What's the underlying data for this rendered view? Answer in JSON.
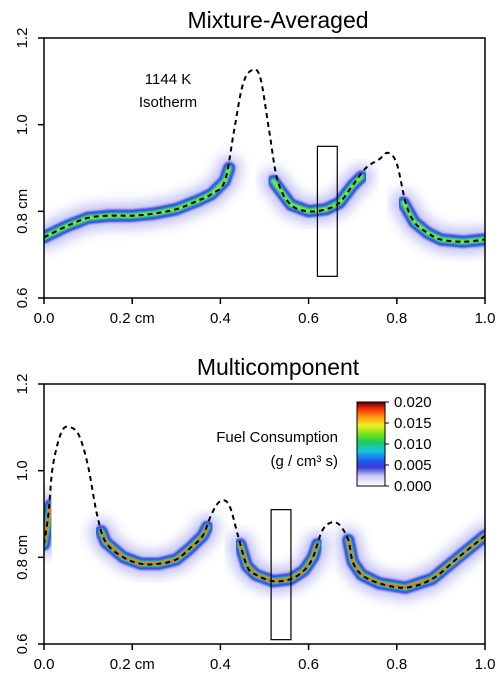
{
  "chart_data": [
    {
      "type": "heatmap",
      "title": "Mixture-Averaged",
      "xlim": [
        0.0,
        1.0
      ],
      "ylim": [
        0.6,
        1.2
      ],
      "x_ticks": [
        {
          "value": 0.0,
          "label": "0.0"
        },
        {
          "value": 0.2,
          "label": "0.2 cm"
        },
        {
          "value": 0.4,
          "label": "0.4"
        },
        {
          "value": 0.6,
          "label": "0.6"
        },
        {
          "value": 0.8,
          "label": "0.8"
        },
        {
          "value": 1.0,
          "label": "1.0"
        }
      ],
      "y_ticks": [
        {
          "value": 0.6,
          "label": "0.6"
        },
        {
          "value": 0.8,
          "label": "0.8 cm"
        },
        {
          "value": 1.0,
          "label": "1.0"
        },
        {
          "value": 1.2,
          "label": "1.2"
        }
      ],
      "annotation": [
        "1144 K",
        "Isotherm"
      ],
      "isotherm": {
        "x": [
          0.0,
          0.05,
          0.1,
          0.15,
          0.2,
          0.25,
          0.3,
          0.35,
          0.38,
          0.41,
          0.43,
          0.45,
          0.47,
          0.49,
          0.51,
          0.53,
          0.56,
          0.6,
          0.64,
          0.67,
          0.7,
          0.73,
          0.76,
          0.78,
          0.8,
          0.82,
          0.84,
          0.87,
          0.9,
          0.95,
          1.0
        ],
        "y": [
          0.74,
          0.765,
          0.785,
          0.79,
          0.79,
          0.795,
          0.805,
          0.825,
          0.84,
          0.87,
          0.98,
          1.09,
          1.125,
          1.11,
          0.99,
          0.87,
          0.815,
          0.8,
          0.805,
          0.82,
          0.86,
          0.9,
          0.92,
          0.935,
          0.91,
          0.82,
          0.775,
          0.75,
          0.735,
          0.73,
          0.735
        ]
      },
      "reaction_band": {
        "x": [
          0.0,
          0.05,
          0.1,
          0.15,
          0.2,
          0.25,
          0.3,
          0.35,
          0.38,
          0.41,
          0.42,
          0.52,
          0.56,
          0.6,
          0.64,
          0.67,
          0.7,
          0.72,
          0.815,
          0.84,
          0.87,
          0.9,
          0.95,
          1.0
        ],
        "y": [
          0.74,
          0.765,
          0.785,
          0.79,
          0.79,
          0.795,
          0.805,
          0.825,
          0.84,
          0.87,
          0.9,
          0.87,
          0.815,
          0.8,
          0.805,
          0.82,
          0.86,
          0.88,
          0.82,
          0.775,
          0.75,
          0.735,
          0.73,
          0.735
        ],
        "breaks_after_x": [
          0.42,
          0.72
        ],
        "peak": 0.012
      },
      "box": {
        "x": [
          0.62,
          0.665
        ],
        "y": [
          0.65,
          0.95
        ]
      }
    },
    {
      "type": "heatmap",
      "title": "Multicomponent",
      "xlim": [
        0.0,
        1.0
      ],
      "ylim": [
        0.6,
        1.2
      ],
      "x_ticks": [
        {
          "value": 0.0,
          "label": "0.0"
        },
        {
          "value": 0.2,
          "label": "0.2 cm"
        },
        {
          "value": 0.4,
          "label": "0.4"
        },
        {
          "value": 0.6,
          "label": "0.6"
        },
        {
          "value": 0.8,
          "label": "0.8"
        },
        {
          "value": 1.0,
          "label": "1.0"
        }
      ],
      "y_ticks": [
        {
          "value": 0.6,
          "label": "0.6"
        },
        {
          "value": 0.8,
          "label": "0.8 cm"
        },
        {
          "value": 1.0,
          "label": "1.0"
        },
        {
          "value": 1.2,
          "label": "1.2"
        }
      ],
      "colorbar": {
        "title": [
          "Fuel Consumption",
          "(g / cm³ s)"
        ],
        "ticks": [
          "0.020",
          "0.015",
          "0.010",
          "0.005",
          "0.000"
        ],
        "range": [
          0.0,
          0.02
        ]
      },
      "isotherm": {
        "x": [
          0.0,
          0.01,
          0.02,
          0.04,
          0.06,
          0.08,
          0.1,
          0.12,
          0.14,
          0.18,
          0.22,
          0.26,
          0.3,
          0.33,
          0.36,
          0.38,
          0.4,
          0.42,
          0.44,
          0.46,
          0.48,
          0.52,
          0.56,
          0.59,
          0.61,
          0.63,
          0.65,
          0.67,
          0.69,
          0.7,
          0.72,
          0.76,
          0.82,
          0.88,
          0.94,
          1.0
        ],
        "y": [
          0.83,
          0.9,
          1.01,
          1.09,
          1.1,
          1.08,
          1.01,
          0.9,
          0.835,
          0.8,
          0.785,
          0.785,
          0.795,
          0.82,
          0.85,
          0.9,
          0.93,
          0.92,
          0.85,
          0.78,
          0.76,
          0.745,
          0.75,
          0.77,
          0.8,
          0.86,
          0.88,
          0.875,
          0.84,
          0.79,
          0.76,
          0.74,
          0.73,
          0.75,
          0.8,
          0.85
        ]
      },
      "reaction_band": {
        "x": [
          0.0,
          0.015,
          0.13,
          0.14,
          0.18,
          0.22,
          0.26,
          0.3,
          0.33,
          0.36,
          0.37,
          0.445,
          0.46,
          0.48,
          0.52,
          0.56,
          0.59,
          0.61,
          0.62,
          0.69,
          0.7,
          0.72,
          0.76,
          0.82,
          0.88,
          0.94,
          1.0
        ],
        "y": [
          0.83,
          0.92,
          0.86,
          0.835,
          0.8,
          0.785,
          0.785,
          0.795,
          0.82,
          0.85,
          0.87,
          0.83,
          0.78,
          0.76,
          0.745,
          0.75,
          0.77,
          0.8,
          0.83,
          0.84,
          0.79,
          0.76,
          0.74,
          0.73,
          0.75,
          0.8,
          0.85
        ],
        "breaks_after_x": [
          0.015,
          0.37,
          0.62
        ],
        "peak": 0.019
      },
      "box": {
        "x": [
          0.515,
          0.56
        ],
        "y": [
          0.61,
          0.91
        ]
      }
    }
  ]
}
